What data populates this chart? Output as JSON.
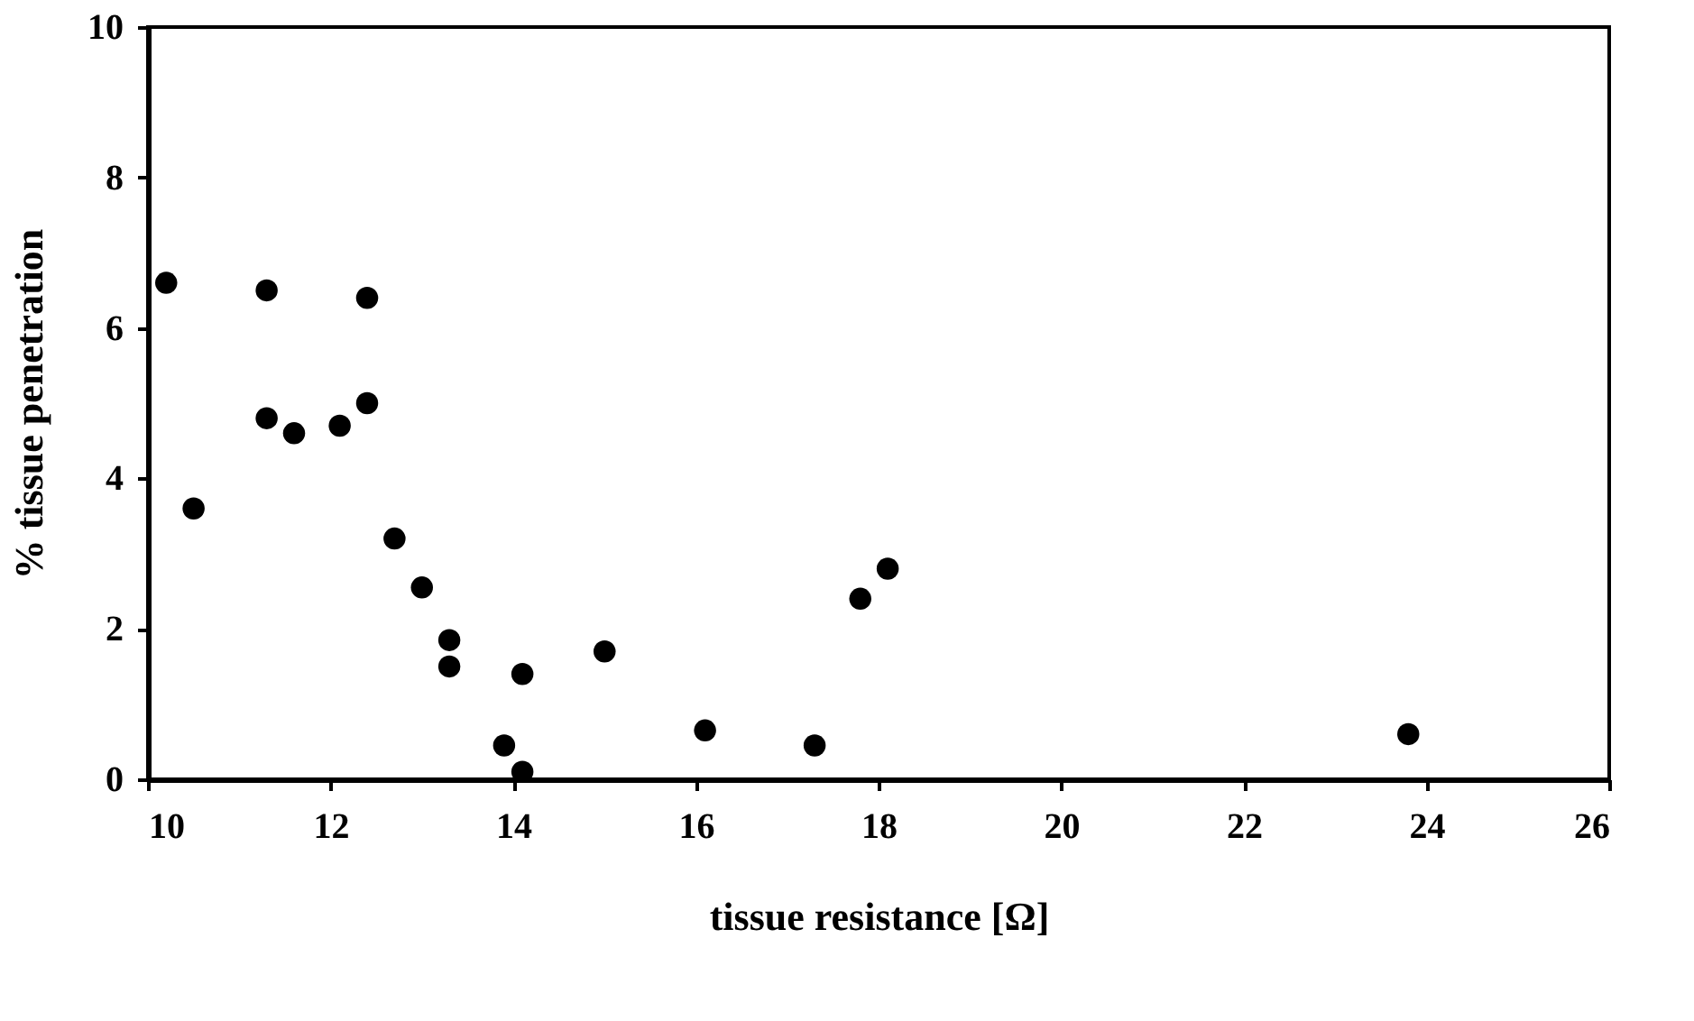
{
  "chart_data": {
    "type": "scatter",
    "xlabel": "tissue resistance [Ω]",
    "ylabel": "% tissue penetration",
    "x": [
      10.2,
      10.5,
      11.3,
      11.3,
      11.6,
      12.1,
      12.4,
      12.4,
      12.7,
      13.0,
      13.3,
      13.3,
      13.9,
      14.1,
      14.1,
      15.0,
      16.1,
      17.3,
      17.8,
      18.1,
      23.8
    ],
    "values": [
      6.6,
      3.6,
      6.5,
      4.8,
      4.6,
      4.7,
      6.4,
      5.0,
      3.2,
      2.55,
      1.85,
      1.5,
      0.45,
      0.1,
      1.4,
      1.7,
      0.65,
      0.45,
      2.4,
      2.8,
      0.6
    ],
    "color": "#000000",
    "marker": "circle",
    "xlim": [
      10,
      26
    ],
    "xticks": [
      10,
      12,
      14,
      16,
      18,
      20,
      22,
      24,
      26
    ],
    "ylim": [
      0,
      10
    ],
    "yticks": [
      0,
      2,
      4,
      6,
      8,
      10
    ],
    "grid": false
  }
}
